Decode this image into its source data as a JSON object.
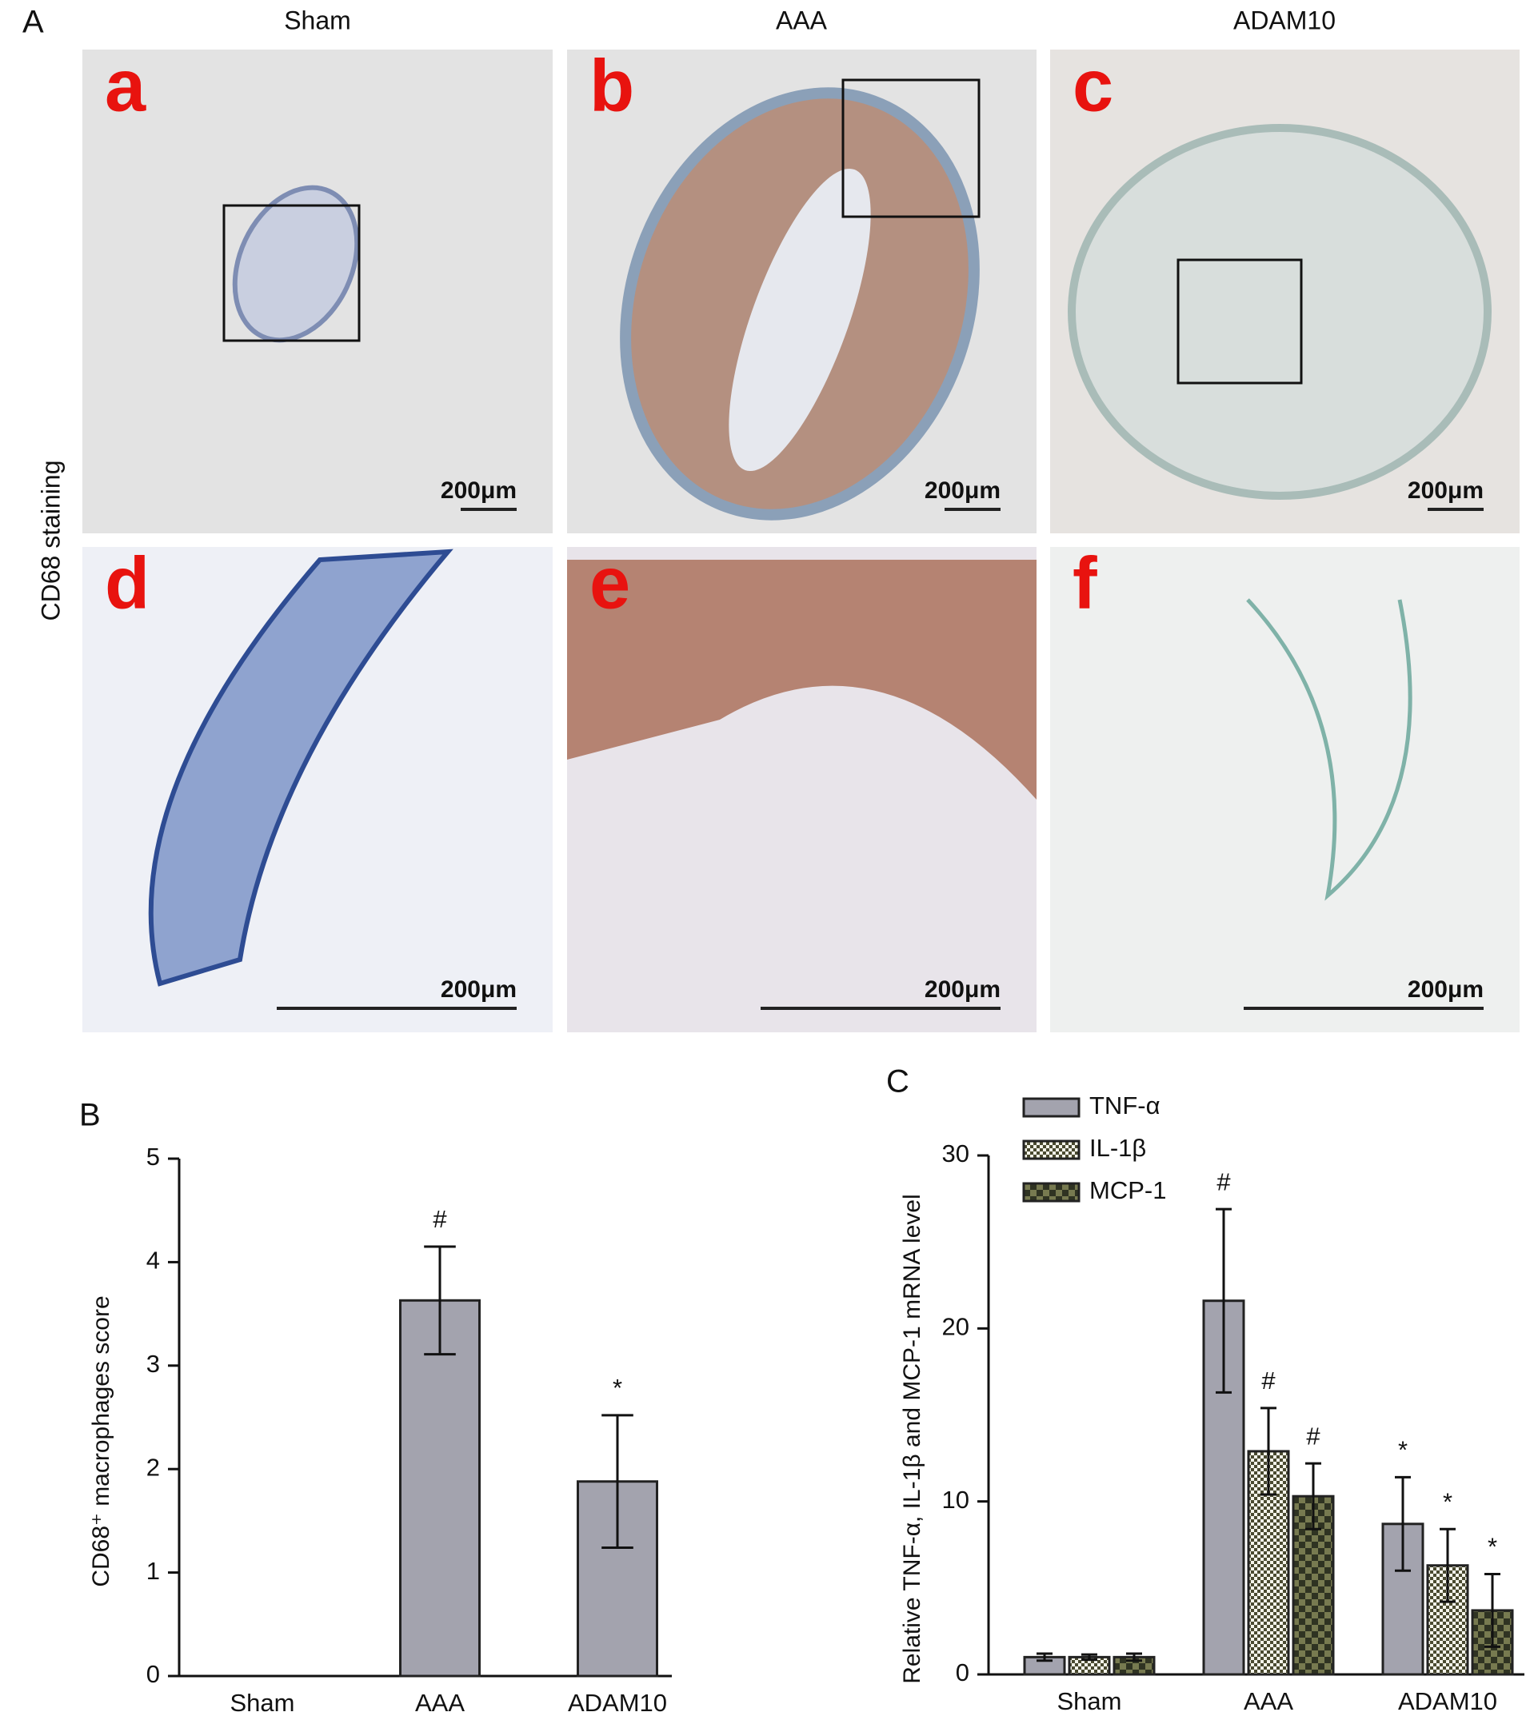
{
  "figure": {
    "label": "A",
    "columns": [
      "Sham",
      "AAA",
      "ADAM10"
    ],
    "row_label": "CD68 staining",
    "images": [
      {
        "letter": "a",
        "scale": "200μm"
      },
      {
        "letter": "b",
        "scale": "200μm"
      },
      {
        "letter": "c",
        "scale": "200μm"
      },
      {
        "letter": "d",
        "scale": "200μm"
      },
      {
        "letter": "e",
        "scale": "200μm"
      },
      {
        "letter": "f",
        "scale": "200μm"
      }
    ]
  },
  "chart_data": [
    {
      "type": "bar",
      "label": "B",
      "ylabel": "CD68⁺ macrophages score",
      "categories": [
        "Sham",
        "AAA",
        "ADAM10"
      ],
      "values": [
        0,
        3.63,
        1.88
      ],
      "errors": [
        0,
        0.52,
        0.64
      ],
      "annotations": [
        null,
        "#",
        "*"
      ],
      "color": "#a3a3ae",
      "ylim": [
        0,
        5
      ],
      "yticks": [
        0,
        1,
        2,
        3,
        4,
        5
      ]
    },
    {
      "type": "grouped-bar",
      "label": "C",
      "ylabel": "Relative TNF-α, IL-1β and MCP-1 mRNA level",
      "categories": [
        "Sham",
        "AAA",
        "ADAM10"
      ],
      "legend": "top-left",
      "series": [
        {
          "name": "TNF-α",
          "color": "#a3a3ae",
          "pattern": "solid",
          "values": [
            1.0,
            21.6,
            8.7
          ],
          "errors": [
            0.2,
            5.3,
            2.7
          ],
          "annotations": [
            null,
            "#",
            "*"
          ]
        },
        {
          "name": "IL-1β",
          "color": "#4a4a30",
          "pattern": "fine-check",
          "values": [
            1.0,
            12.9,
            6.3
          ],
          "errors": [
            0.15,
            2.5,
            2.1
          ],
          "annotations": [
            null,
            "#",
            "*"
          ]
        },
        {
          "name": "MCP-1",
          "color": "#2f3322",
          "pattern": "coarse-check",
          "values": [
            1.0,
            10.3,
            3.7
          ],
          "errors": [
            0.2,
            1.9,
            2.1
          ],
          "annotations": [
            null,
            "#",
            "*"
          ]
        }
      ],
      "ylim": [
        0,
        30
      ],
      "yticks": [
        0,
        10,
        20,
        30
      ]
    }
  ]
}
